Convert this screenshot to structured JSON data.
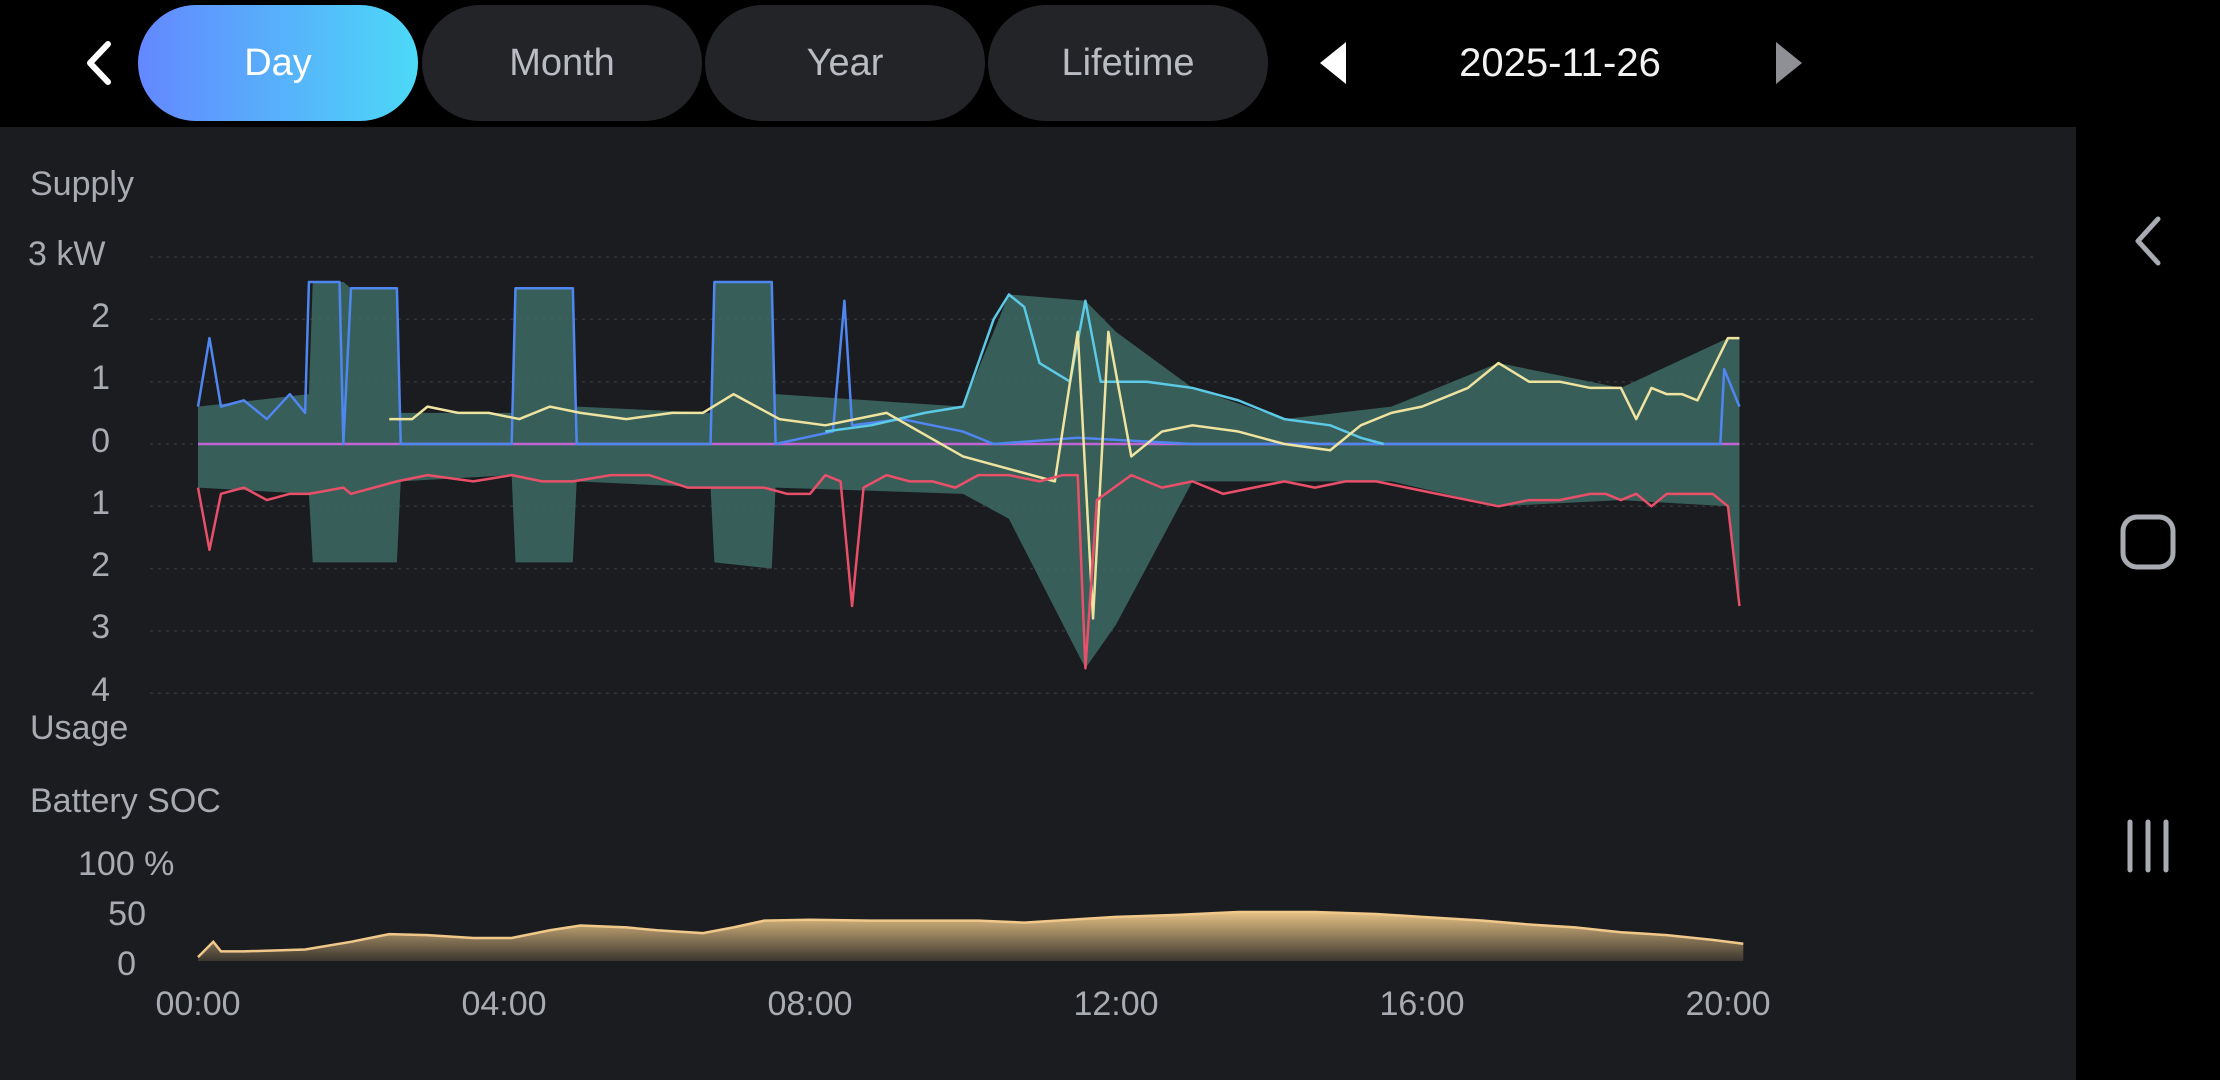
{
  "header": {
    "tabs": [
      {
        "label": "Day",
        "active": true
      },
      {
        "label": "Month",
        "active": false
      },
      {
        "label": "Year",
        "active": false
      },
      {
        "label": "Lifetime",
        "active": false
      }
    ],
    "date": "2025-11-26"
  },
  "chart_data": [
    {
      "type": "area",
      "title": "Supply",
      "bottom_label": "Usage",
      "yunit": "kW",
      "y_ticks_top": [
        "3 kW",
        "2",
        "1",
        "0"
      ],
      "y_ticks_bottom": [
        "1",
        "2",
        "3",
        "4"
      ],
      "ylim": [
        -4,
        3
      ],
      "xlim_hours": [
        0,
        24
      ],
      "x_ticks": [
        "00:00",
        "04:00",
        "08:00",
        "12:00",
        "16:00",
        "20:00"
      ],
      "grid": true,
      "colors": {
        "blue": "#4f86f0",
        "cyan": "#5cc9e6",
        "yellow": "#efe3a0",
        "red": "#e8506a",
        "fill": "#3d6a64"
      },
      "series": [
        {
          "color_name": "blue",
          "points": [
            [
              0.0,
              0.6
            ],
            [
              0.15,
              1.7
            ],
            [
              0.3,
              0.6
            ],
            [
              0.6,
              0.7
            ],
            [
              0.9,
              0.4
            ],
            [
              1.2,
              0.8
            ],
            [
              1.4,
              0.5
            ],
            [
              1.45,
              2.6
            ],
            [
              1.85,
              2.6
            ],
            [
              1.9,
              0.0
            ],
            [
              2.0,
              2.5
            ],
            [
              2.6,
              2.5
            ],
            [
              2.65,
              0.0
            ],
            [
              4.1,
              0.0
            ],
            [
              4.15,
              2.5
            ],
            [
              4.9,
              2.5
            ],
            [
              4.95,
              0.0
            ],
            [
              6.7,
              0.0
            ],
            [
              6.75,
              2.6
            ],
            [
              7.5,
              2.6
            ],
            [
              7.55,
              0.0
            ],
            [
              8.3,
              0.2
            ],
            [
              8.45,
              2.3
            ],
            [
              8.55,
              0.3
            ],
            [
              9.2,
              0.4
            ],
            [
              10.0,
              0.2
            ],
            [
              10.4,
              0.0
            ],
            [
              11.5,
              0.1
            ],
            [
              13.0,
              0.0
            ],
            [
              14.5,
              0.0
            ],
            [
              16.0,
              0.0
            ],
            [
              18.0,
              0.0
            ],
            [
              19.9,
              0.0
            ],
            [
              19.95,
              1.2
            ],
            [
              20.15,
              0.6
            ]
          ]
        },
        {
          "color_name": "cyan",
          "points": [
            [
              8.2,
              0.2
            ],
            [
              8.8,
              0.3
            ],
            [
              9.5,
              0.5
            ],
            [
              10.0,
              0.6
            ],
            [
              10.2,
              1.3
            ],
            [
              10.4,
              2.0
            ],
            [
              10.6,
              2.4
            ],
            [
              10.8,
              2.2
            ],
            [
              11.0,
              1.3
            ],
            [
              11.4,
              1.0
            ],
            [
              11.6,
              2.3
            ],
            [
              11.8,
              1.0
            ],
            [
              12.4,
              1.0
            ],
            [
              13.0,
              0.9
            ],
            [
              13.6,
              0.7
            ],
            [
              14.2,
              0.4
            ],
            [
              14.8,
              0.3
            ],
            [
              15.2,
              0.1
            ],
            [
              15.5,
              0.0
            ]
          ]
        },
        {
          "color_name": "yellow",
          "points": [
            [
              2.5,
              0.4
            ],
            [
              2.8,
              0.4
            ],
            [
              3.0,
              0.6
            ],
            [
              3.4,
              0.5
            ],
            [
              3.8,
              0.5
            ],
            [
              4.2,
              0.4
            ],
            [
              4.6,
              0.6
            ],
            [
              5.0,
              0.5
            ],
            [
              5.6,
              0.4
            ],
            [
              6.2,
              0.5
            ],
            [
              6.6,
              0.5
            ],
            [
              7.0,
              0.8
            ],
            [
              7.6,
              0.4
            ],
            [
              8.2,
              0.3
            ],
            [
              9.0,
              0.5
            ],
            [
              10.0,
              -0.2
            ],
            [
              10.6,
              -0.4
            ],
            [
              11.2,
              -0.6
            ],
            [
              11.5,
              1.8
            ],
            [
              11.7,
              -2.8
            ],
            [
              11.9,
              1.8
            ],
            [
              12.2,
              -0.2
            ],
            [
              12.6,
              0.2
            ],
            [
              13.0,
              0.3
            ],
            [
              13.6,
              0.2
            ],
            [
              14.2,
              0.0
            ],
            [
              14.8,
              -0.1
            ],
            [
              15.2,
              0.3
            ],
            [
              15.6,
              0.5
            ],
            [
              16.0,
              0.6
            ],
            [
              16.6,
              0.9
            ],
            [
              17.0,
              1.3
            ],
            [
              17.4,
              1.0
            ],
            [
              17.8,
              1.0
            ],
            [
              18.2,
              0.9
            ],
            [
              18.6,
              0.9
            ],
            [
              18.8,
              0.4
            ],
            [
              19.0,
              0.9
            ],
            [
              19.2,
              0.8
            ],
            [
              19.4,
              0.8
            ],
            [
              19.6,
              0.7
            ],
            [
              19.8,
              1.2
            ],
            [
              20.0,
              1.7
            ],
            [
              20.15,
              1.7
            ]
          ]
        },
        {
          "color_name": "red",
          "points": [
            [
              0.0,
              -0.7
            ],
            [
              0.15,
              -1.7
            ],
            [
              0.3,
              -0.8
            ],
            [
              0.6,
              -0.7
            ],
            [
              0.9,
              -0.9
            ],
            [
              1.2,
              -0.8
            ],
            [
              1.45,
              -0.8
            ],
            [
              1.9,
              -0.7
            ],
            [
              2.0,
              -0.8
            ],
            [
              2.6,
              -0.6
            ],
            [
              3.0,
              -0.5
            ],
            [
              3.6,
              -0.6
            ],
            [
              4.1,
              -0.5
            ],
            [
              4.5,
              -0.6
            ],
            [
              4.9,
              -0.6
            ],
            [
              5.4,
              -0.5
            ],
            [
              5.9,
              -0.5
            ],
            [
              6.4,
              -0.7
            ],
            [
              6.9,
              -0.7
            ],
            [
              7.4,
              -0.7
            ],
            [
              7.7,
              -0.8
            ],
            [
              8.0,
              -0.8
            ],
            [
              8.2,
              -0.5
            ],
            [
              8.4,
              -0.6
            ],
            [
              8.55,
              -2.6
            ],
            [
              8.7,
              -0.7
            ],
            [
              9.0,
              -0.5
            ],
            [
              9.3,
              -0.6
            ],
            [
              9.6,
              -0.6
            ],
            [
              9.9,
              -0.7
            ],
            [
              10.2,
              -0.5
            ],
            [
              10.6,
              -0.5
            ],
            [
              11.0,
              -0.6
            ],
            [
              11.3,
              -0.5
            ],
            [
              11.5,
              -0.5
            ],
            [
              11.6,
              -3.6
            ],
            [
              11.75,
              -0.9
            ],
            [
              12.2,
              -0.5
            ],
            [
              12.6,
              -0.7
            ],
            [
              13.0,
              -0.6
            ],
            [
              13.4,
              -0.8
            ],
            [
              13.8,
              -0.7
            ],
            [
              14.2,
              -0.6
            ],
            [
              14.6,
              -0.7
            ],
            [
              15.0,
              -0.6
            ],
            [
              15.4,
              -0.6
            ],
            [
              15.8,
              -0.7
            ],
            [
              16.2,
              -0.8
            ],
            [
              16.6,
              -0.9
            ],
            [
              17.0,
              -1.0
            ],
            [
              17.4,
              -0.9
            ],
            [
              17.8,
              -0.9
            ],
            [
              18.2,
              -0.8
            ],
            [
              18.4,
              -0.8
            ],
            [
              18.6,
              -0.9
            ],
            [
              18.8,
              -0.8
            ],
            [
              19.0,
              -1.0
            ],
            [
              19.2,
              -0.8
            ],
            [
              19.4,
              -0.8
            ],
            [
              19.6,
              -0.8
            ],
            [
              19.8,
              -0.8
            ],
            [
              20.0,
              -1.0
            ],
            [
              20.15,
              -2.6
            ]
          ]
        }
      ],
      "band_extent": [
        [
          0.0,
          0.6,
          -0.7
        ],
        [
          1.45,
          0.8,
          -0.8
        ],
        [
          1.5,
          2.6,
          -1.9
        ],
        [
          1.9,
          2.6,
          -1.9
        ],
        [
          2.0,
          2.5,
          -1.9
        ],
        [
          2.6,
          2.5,
          -1.9
        ],
        [
          2.65,
          0.5,
          -0.6
        ],
        [
          4.1,
          0.5,
          -0.5
        ],
        [
          4.15,
          2.5,
          -1.9
        ],
        [
          4.9,
          2.5,
          -1.9
        ],
        [
          4.95,
          0.6,
          -0.6
        ],
        [
          6.7,
          0.5,
          -0.7
        ],
        [
          6.75,
          2.6,
          -1.9
        ],
        [
          7.5,
          2.6,
          -2.0
        ],
        [
          7.55,
          0.8,
          -0.7
        ],
        [
          10.0,
          0.6,
          -0.8
        ],
        [
          10.6,
          2.4,
          -1.2
        ],
        [
          11.6,
          2.3,
          -3.6
        ],
        [
          12.0,
          1.8,
          -2.9
        ],
        [
          13.0,
          0.9,
          -0.6
        ],
        [
          14.2,
          0.4,
          -0.6
        ],
        [
          15.6,
          0.6,
          -0.6
        ],
        [
          17.0,
          1.3,
          -1.0
        ],
        [
          18.6,
          0.9,
          -0.9
        ],
        [
          20.0,
          1.7,
          -1.0
        ],
        [
          20.15,
          1.7,
          -2.6
        ]
      ]
    },
    {
      "type": "area",
      "title": "Battery SOC",
      "yunit": "%",
      "y_ticks": [
        "100 %",
        "50",
        "0"
      ],
      "ylim": [
        0,
        100
      ],
      "xlim_hours": [
        0,
        24
      ],
      "x_ticks": [
        "00:00",
        "04:00",
        "08:00",
        "12:00",
        "16:00",
        "20:00"
      ],
      "color": "#f0c98a",
      "points": [
        [
          0.0,
          4
        ],
        [
          0.2,
          20
        ],
        [
          0.3,
          10
        ],
        [
          0.6,
          10
        ],
        [
          1.4,
          12
        ],
        [
          2.0,
          20
        ],
        [
          2.5,
          28
        ],
        [
          3.0,
          27
        ],
        [
          3.6,
          24
        ],
        [
          4.1,
          24
        ],
        [
          4.6,
          32
        ],
        [
          5.0,
          37
        ],
        [
          5.6,
          35
        ],
        [
          6.0,
          32
        ],
        [
          6.6,
          29
        ],
        [
          7.0,
          35
        ],
        [
          7.4,
          42
        ],
        [
          8.0,
          43
        ],
        [
          8.8,
          42
        ],
        [
          9.6,
          42
        ],
        [
          10.2,
          42
        ],
        [
          10.8,
          40
        ],
        [
          11.4,
          43
        ],
        [
          12.0,
          46
        ],
        [
          12.8,
          48
        ],
        [
          13.6,
          51
        ],
        [
          14.6,
          51
        ],
        [
          15.4,
          49
        ],
        [
          16.0,
          46
        ],
        [
          16.8,
          42
        ],
        [
          17.4,
          38
        ],
        [
          18.0,
          35
        ],
        [
          18.6,
          30
        ],
        [
          19.2,
          27
        ],
        [
          19.8,
          22
        ],
        [
          20.2,
          18
        ]
      ]
    }
  ]
}
